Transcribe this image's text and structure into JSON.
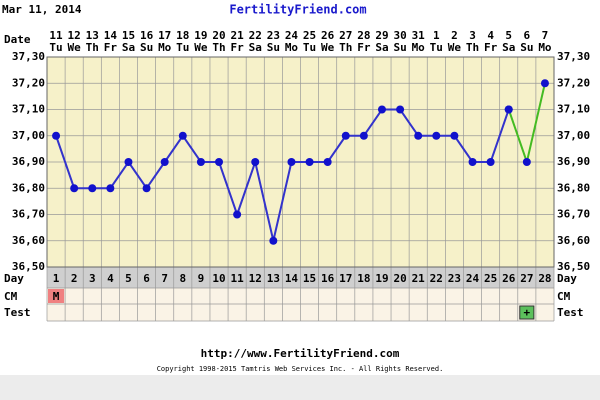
{
  "chart_data": {
    "type": "line",
    "date_stamp": "Mar 11, 2014",
    "title": "FertilityFriend.com",
    "row_labels": {
      "date": "Date",
      "day": "Day",
      "cm": "CM",
      "test": "Test"
    },
    "categories": [
      "11",
      "12",
      "13",
      "14",
      "15",
      "16",
      "17",
      "18",
      "19",
      "20",
      "21",
      "22",
      "23",
      "24",
      "25",
      "26",
      "27",
      "28",
      "29",
      "30",
      "31",
      "1",
      "2",
      "3",
      "4",
      "5",
      "6",
      "7"
    ],
    "weekdays": [
      "Tu",
      "We",
      "Th",
      "Fr",
      "Sa",
      "Su",
      "Mo",
      "Tu",
      "We",
      "Th",
      "Fr",
      "Sa",
      "Su",
      "Mo",
      "Tu",
      "We",
      "Th",
      "Fr",
      "Sa",
      "Su",
      "Mo",
      "Tu",
      "We",
      "Th",
      "Fr",
      "Sa",
      "Su",
      "Mo"
    ],
    "days": [
      1,
      2,
      3,
      4,
      5,
      6,
      7,
      8,
      9,
      10,
      11,
      12,
      13,
      14,
      15,
      16,
      17,
      18,
      19,
      20,
      21,
      22,
      23,
      24,
      25,
      26,
      27,
      28
    ],
    "cm": [
      "M",
      null,
      null,
      null,
      null,
      null,
      null,
      null,
      null,
      null,
      null,
      null,
      null,
      null,
      null,
      null,
      null,
      null,
      null,
      null,
      null,
      null,
      null,
      null,
      null,
      null,
      null,
      null
    ],
    "cm_color": "#f08080",
    "test": [
      null,
      null,
      null,
      null,
      null,
      null,
      null,
      null,
      null,
      null,
      null,
      null,
      null,
      null,
      null,
      null,
      null,
      null,
      null,
      null,
      null,
      null,
      null,
      null,
      null,
      null,
      "+",
      null
    ],
    "test_color": "#5cc05c",
    "series": [
      {
        "color": "#3333cc",
        "marker_color": "#1111cc",
        "values": [
          37.0,
          36.8,
          36.8,
          36.8,
          36.9,
          36.8,
          36.9,
          37.0,
          36.9,
          36.9,
          36.7,
          36.9,
          36.6,
          36.9,
          36.9,
          36.9,
          37.0,
          37.0,
          37.1,
          37.1,
          37.0,
          37.0,
          37.0,
          36.9,
          36.9,
          37.1,
          null,
          null
        ]
      },
      {
        "color": "#44bb22",
        "marker_color": "#1111cc",
        "values": [
          null,
          null,
          null,
          null,
          null,
          null,
          null,
          null,
          null,
          null,
          null,
          null,
          null,
          null,
          null,
          null,
          null,
          null,
          null,
          null,
          null,
          null,
          null,
          null,
          null,
          37.1,
          36.9,
          37.2
        ]
      }
    ],
    "ylim": [
      36.5,
      37.3
    ],
    "yticks": [
      {
        "value": 36.5,
        "label": "36,50"
      },
      {
        "value": 36.6,
        "label": "36,60"
      },
      {
        "value": 36.7,
        "label": "36,70"
      },
      {
        "value": 36.8,
        "label": "36,80"
      },
      {
        "value": 36.9,
        "label": "36,90"
      },
      {
        "value": 37.0,
        "label": "37,00"
      },
      {
        "value": 37.1,
        "label": "37,10"
      },
      {
        "value": 37.2,
        "label": "37,20"
      },
      {
        "value": 37.3,
        "label": "37,30"
      }
    ],
    "grid": true,
    "footer_url": "http://www.FertilityFriend.com",
    "copyright": "Copyright 1998-2015 Tamtris Web Services Inc. - All Rights Reserved."
  }
}
